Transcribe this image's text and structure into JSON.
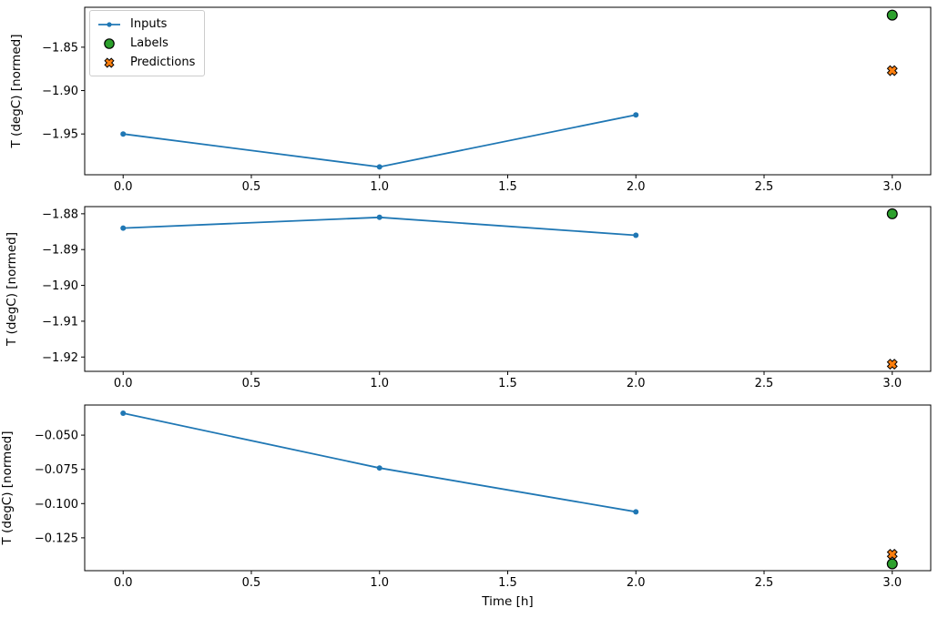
{
  "figure": {
    "background": "#ffffff",
    "xlabel": "Time [h]",
    "ylabel": "T (degC) [normed]"
  },
  "colors": {
    "inputs": "#1f77b4",
    "labels": "#2ca02c",
    "predictions": "#ff7f0e",
    "marker_edge": "#000000",
    "axis": "#000000",
    "legend_border": "#cccccc"
  },
  "legend": {
    "position": "upper left",
    "items": [
      {
        "label": "Inputs",
        "marker": "line-dot",
        "color_key": "inputs"
      },
      {
        "label": "Labels",
        "marker": "circle",
        "color_key": "labels"
      },
      {
        "label": "Predictions",
        "marker": "X",
        "color_key": "predictions"
      }
    ]
  },
  "chart_data": [
    {
      "type": "line",
      "title": "",
      "xlabel": "",
      "ylabel": "T (degC) [normed]",
      "xlim": [
        -0.15,
        3.15
      ],
      "ylim": [
        -1.997,
        -1.804
      ],
      "xtick_values": [
        0.0,
        0.5,
        1.0,
        1.5,
        2.0,
        2.5,
        3.0
      ],
      "xtick_labels": [
        "0.0",
        "0.5",
        "1.0",
        "1.5",
        "2.0",
        "2.5",
        "3.0"
      ],
      "ytick_values": [
        -1.85,
        -1.9,
        -1.95
      ],
      "ytick_labels": [
        "−1.85",
        "−1.90",
        "−1.95"
      ],
      "series": [
        {
          "name": "Inputs",
          "kind": "line",
          "marker": "dot",
          "color_key": "inputs",
          "x": [
            0.0,
            1.0,
            2.0
          ],
          "y": [
            -1.95,
            -1.988,
            -1.928
          ]
        },
        {
          "name": "Labels",
          "kind": "scatter",
          "marker": "circle",
          "color_key": "labels",
          "x": [
            3.0
          ],
          "y": [
            -1.813
          ]
        },
        {
          "name": "Predictions",
          "kind": "scatter",
          "marker": "X",
          "color_key": "predictions",
          "x": [
            3.0
          ],
          "y": [
            -1.877
          ]
        }
      ]
    },
    {
      "type": "line",
      "title": "",
      "xlabel": "",
      "ylabel": "T (degC) [normed]",
      "xlim": [
        -0.15,
        3.15
      ],
      "ylim": [
        -1.924,
        -1.878
      ],
      "xtick_values": [
        0.0,
        0.5,
        1.0,
        1.5,
        2.0,
        2.5,
        3.0
      ],
      "xtick_labels": [
        "0.0",
        "0.5",
        "1.0",
        "1.5",
        "2.0",
        "2.5",
        "3.0"
      ],
      "ytick_values": [
        -1.88,
        -1.89,
        -1.9,
        -1.91,
        -1.92
      ],
      "ytick_labels": [
        "−1.88",
        "−1.89",
        "−1.90",
        "−1.91",
        "−1.92"
      ],
      "series": [
        {
          "name": "Inputs",
          "kind": "line",
          "marker": "dot",
          "color_key": "inputs",
          "x": [
            0.0,
            1.0,
            2.0
          ],
          "y": [
            -1.884,
            -1.881,
            -1.886
          ]
        },
        {
          "name": "Labels",
          "kind": "scatter",
          "marker": "circle",
          "color_key": "labels",
          "x": [
            3.0
          ],
          "y": [
            -1.88
          ]
        },
        {
          "name": "Predictions",
          "kind": "scatter",
          "marker": "X",
          "color_key": "predictions",
          "x": [
            3.0
          ],
          "y": [
            -1.922
          ]
        }
      ]
    },
    {
      "type": "line",
      "title": "",
      "xlabel": "Time [h]",
      "ylabel": "T (degC) [normed]",
      "xlim": [
        -0.15,
        3.15
      ],
      "ylim": [
        -0.149,
        -0.028
      ],
      "xtick_values": [
        0.0,
        0.5,
        1.0,
        1.5,
        2.0,
        2.5,
        3.0
      ],
      "xtick_labels": [
        "0.0",
        "0.5",
        "1.0",
        "1.5",
        "2.0",
        "2.5",
        "3.0"
      ],
      "ytick_values": [
        -0.05,
        -0.075,
        -0.1,
        -0.125
      ],
      "ytick_labels": [
        "−0.050",
        "−0.075",
        "−0.100",
        "−0.125"
      ],
      "series": [
        {
          "name": "Inputs",
          "kind": "line",
          "marker": "dot",
          "color_key": "inputs",
          "x": [
            0.0,
            1.0,
            2.0
          ],
          "y": [
            -0.034,
            -0.074,
            -0.106
          ]
        },
        {
          "name": "Labels",
          "kind": "scatter",
          "marker": "circle",
          "color_key": "labels",
          "x": [
            3.0
          ],
          "y": [
            -0.144
          ]
        },
        {
          "name": "Predictions",
          "kind": "scatter",
          "marker": "X",
          "color_key": "predictions",
          "x": [
            3.0
          ],
          "y": [
            -0.137
          ]
        }
      ]
    }
  ]
}
